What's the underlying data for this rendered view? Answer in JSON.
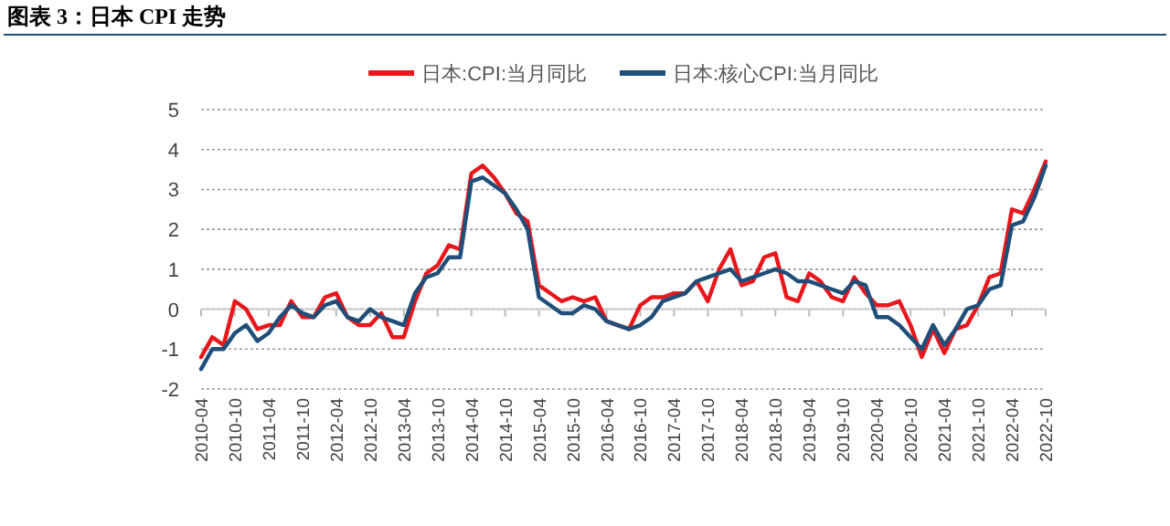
{
  "chart_data": {
    "type": "line",
    "title": "图表 3：日本 CPI 走势",
    "x": [
      "2010-04",
      "2010-06",
      "2010-08",
      "2010-10",
      "2010-12",
      "2011-02",
      "2011-04",
      "2011-06",
      "2011-08",
      "2011-10",
      "2011-12",
      "2012-02",
      "2012-04",
      "2012-06",
      "2012-08",
      "2012-10",
      "2012-12",
      "2013-02",
      "2013-04",
      "2013-06",
      "2013-08",
      "2013-10",
      "2013-12",
      "2014-02",
      "2014-04",
      "2014-06",
      "2014-08",
      "2014-10",
      "2014-12",
      "2015-02",
      "2015-04",
      "2015-06",
      "2015-08",
      "2015-10",
      "2015-12",
      "2016-02",
      "2016-04",
      "2016-06",
      "2016-08",
      "2016-10",
      "2016-12",
      "2017-02",
      "2017-04",
      "2017-06",
      "2017-08",
      "2017-10",
      "2017-12",
      "2018-02",
      "2018-04",
      "2018-06",
      "2018-08",
      "2018-10",
      "2018-12",
      "2019-02",
      "2019-04",
      "2019-06",
      "2019-08",
      "2019-10",
      "2019-12",
      "2020-02",
      "2020-04",
      "2020-06",
      "2020-08",
      "2020-10",
      "2020-12",
      "2021-02",
      "2021-04",
      "2021-06",
      "2021-08",
      "2021-10",
      "2021-12",
      "2022-02",
      "2022-04",
      "2022-06",
      "2022-08",
      "2022-10"
    ],
    "series": [
      {
        "name": "日本:CPI:当月同比",
        "color": "#e8171c",
        "values": [
          -1.2,
          -0.7,
          -0.9,
          0.2,
          0.0,
          -0.5,
          -0.4,
          -0.4,
          0.2,
          -0.2,
          -0.2,
          0.3,
          0.4,
          -0.2,
          -0.4,
          -0.4,
          -0.1,
          -0.7,
          -0.7,
          0.2,
          0.9,
          1.1,
          1.6,
          1.5,
          3.4,
          3.6,
          3.3,
          2.9,
          2.4,
          2.2,
          0.6,
          0.4,
          0.2,
          0.3,
          0.2,
          0.3,
          -0.3,
          -0.4,
          -0.5,
          0.1,
          0.3,
          0.3,
          0.4,
          0.4,
          0.7,
          0.2,
          1.0,
          1.5,
          0.6,
          0.7,
          1.3,
          1.4,
          0.3,
          0.2,
          0.9,
          0.7,
          0.3,
          0.2,
          0.8,
          0.4,
          0.1,
          0.1,
          0.2,
          -0.4,
          -1.2,
          -0.5,
          -1.1,
          -0.5,
          -0.4,
          0.1,
          0.8,
          0.9,
          2.5,
          2.4,
          3.0,
          3.7
        ]
      },
      {
        "name": "日本:核心CPI:当月同比",
        "color": "#1f4e79",
        "values": [
          -1.5,
          -1.0,
          -1.0,
          -0.6,
          -0.4,
          -0.8,
          -0.6,
          -0.2,
          0.1,
          -0.1,
          -0.2,
          0.1,
          0.2,
          -0.2,
          -0.3,
          0.0,
          -0.2,
          -0.3,
          -0.4,
          0.4,
          0.8,
          0.9,
          1.3,
          1.3,
          3.2,
          3.3,
          3.1,
          2.9,
          2.5,
          2.0,
          0.3,
          0.1,
          -0.1,
          -0.1,
          0.1,
          0.0,
          -0.3,
          -0.4,
          -0.5,
          -0.4,
          -0.2,
          0.2,
          0.3,
          0.4,
          0.7,
          0.8,
          0.9,
          1.0,
          0.7,
          0.8,
          0.9,
          1.0,
          0.9,
          0.7,
          0.7,
          0.6,
          0.5,
          0.4,
          0.7,
          0.6,
          -0.2,
          -0.2,
          -0.4,
          -0.7,
          -1.0,
          -0.4,
          -0.9,
          -0.5,
          0.0,
          0.1,
          0.5,
          0.6,
          2.1,
          2.2,
          2.8,
          3.6
        ]
      }
    ],
    "xlim": [
      "2010-04",
      "2022-10"
    ],
    "xticks": [
      "2010-04",
      "2010-10",
      "2011-04",
      "2011-10",
      "2012-04",
      "2012-10",
      "2013-04",
      "2013-10",
      "2014-04",
      "2014-10",
      "2015-04",
      "2015-10",
      "2016-04",
      "2016-10",
      "2017-04",
      "2017-10",
      "2018-04",
      "2018-10",
      "2019-04",
      "2019-10",
      "2020-04",
      "2020-10",
      "2021-04",
      "2021-10",
      "2022-04",
      "2022-10"
    ],
    "ylim": [
      -2,
      5
    ],
    "yticks": [
      -2,
      -1,
      0,
      1,
      2,
      3,
      4,
      5
    ],
    "grid": "y",
    "legend": "top",
    "marker": "none",
    "line_style": "solid"
  }
}
